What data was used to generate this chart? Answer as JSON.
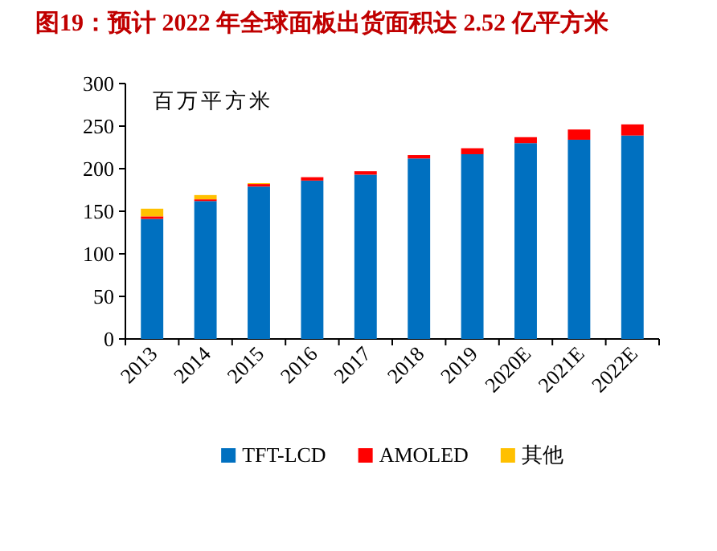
{
  "chart_data": {
    "type": "bar",
    "stacked": true,
    "title": "图19：预计 2022 年全球面板出货面积达 2.52 亿平方米",
    "ylabel": "百万平方米",
    "categories": [
      "2013",
      "2014",
      "2015",
      "2016",
      "2017",
      "2018",
      "2019",
      "2020E",
      "2021E",
      "2022E"
    ],
    "series": [
      {
        "name": "TFT-LCD",
        "color": "#0070c0",
        "values": [
          141,
          162,
          179,
          186,
          193,
          212,
          217,
          230,
          234,
          239
        ]
      },
      {
        "name": "AMOLED",
        "color": "#ff0000",
        "values": [
          3,
          2,
          3,
          4,
          4,
          4,
          7,
          7,
          12,
          13
        ]
      },
      {
        "name": "其他",
        "color": "#ffc000",
        "values": [
          9,
          5,
          1,
          null,
          null,
          null,
          null,
          null,
          null,
          null
        ]
      }
    ],
    "ylim": [
      0,
      300
    ],
    "yticks": [
      0,
      50,
      100,
      150,
      200,
      250,
      300
    ],
    "legend": "bottom",
    "grid": false
  }
}
